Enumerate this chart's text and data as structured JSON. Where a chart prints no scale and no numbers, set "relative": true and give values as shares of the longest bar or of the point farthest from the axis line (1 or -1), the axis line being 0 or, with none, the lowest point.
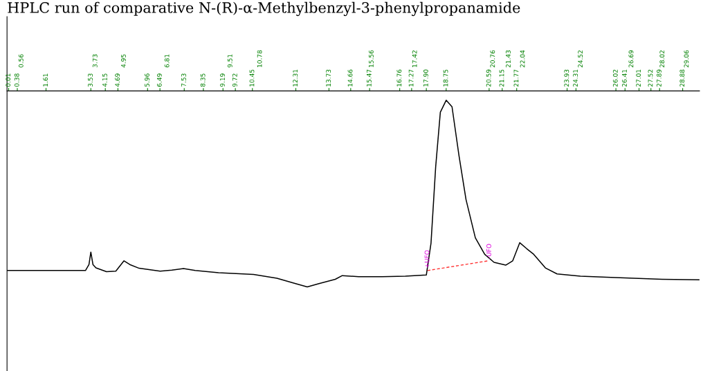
{
  "chart_data": {
    "type": "line",
    "title": "HPLC run of comparative N-(R)-α-Methylbenzyl-3-phenylpropanamide",
    "relative": true,
    "tick_labels": "x",
    "xlim": [
      -0.06,
      29.6
    ],
    "xticks": [
      0.01,
      0.38,
      1.61,
      3.53,
      4.15,
      4.69,
      5.96,
      6.49,
      7.53,
      8.35,
      9.19,
      9.72,
      10.45,
      12.31,
      13.73,
      14.66,
      15.47,
      16.76,
      17.27,
      {
        "value": 17.9,
        "label": "17.90"
      },
      18.75,
      20.59,
      21.15,
      21.77,
      23.93,
      24.31,
      26.02,
      26.41,
      27.01,
      27.52,
      27.89,
      28.88
    ],
    "x2lim": [
      -0.06,
      29.6
    ],
    "x2ticks": [
      0.56,
      3.73,
      4.95,
      6.81,
      9.51,
      10.78,
      15.56,
      17.42,
      20.76,
      21.43,
      22.04,
      24.52,
      26.69,
      28.02,
      29.06
    ],
    "series": [
      {
        "color": "#000000",
        "line_style": "solid",
        "x": [
          -0.06,
          1.5,
          3.3,
          3.45,
          3.53,
          3.62,
          3.75,
          4.2,
          4.6,
          4.95,
          5.2,
          5.6,
          6.5,
          7.0,
          7.5,
          8.0,
          9.0,
          10.5,
          11.5,
          12.3,
          12.8,
          13.3,
          14.0,
          14.3,
          15.0,
          16.0,
          17.0,
          17.9,
          18.1,
          18.3,
          18.5,
          18.75,
          19.0,
          19.3,
          19.6,
          20.0,
          20.4,
          20.8,
          21.3,
          21.6,
          21.9,
          22.2,
          22.5,
          23.0,
          23.5,
          24.5,
          26.0,
          28.0,
          29.6
        ],
        "values": [
          0.088,
          0.088,
          0.088,
          0.12,
          0.187,
          0.12,
          0.102,
          0.082,
          0.085,
          0.14,
          0.12,
          0.1,
          0.085,
          0.09,
          0.099,
          0.088,
          0.076,
          0.067,
          0.047,
          0.018,
          0,
          0.018,
          0.041,
          0.061,
          0.055,
          0.055,
          0.058,
          0.064,
          0.234,
          0.643,
          0.936,
          1.0,
          0.965,
          0.702,
          0.468,
          0.263,
          0.175,
          0.132,
          0.117,
          0.14,
          0.237,
          0.205,
          0.175,
          0.102,
          0.07,
          0.058,
          0.05,
          0.041,
          0.038
        ]
      },
      {
        "color": "#ff3333",
        "line_style": "dashed",
        "x": [
          17.95,
          20.55
        ],
        "values": [
          0.088,
          0.14
        ]
      }
    ],
    "annotations": [
      {
        "text": "+UFO",
        "x": 17.95,
        "y": 0.1
      },
      {
        "text": "-UFO",
        "x": 20.6,
        "y": 0.15
      }
    ]
  }
}
